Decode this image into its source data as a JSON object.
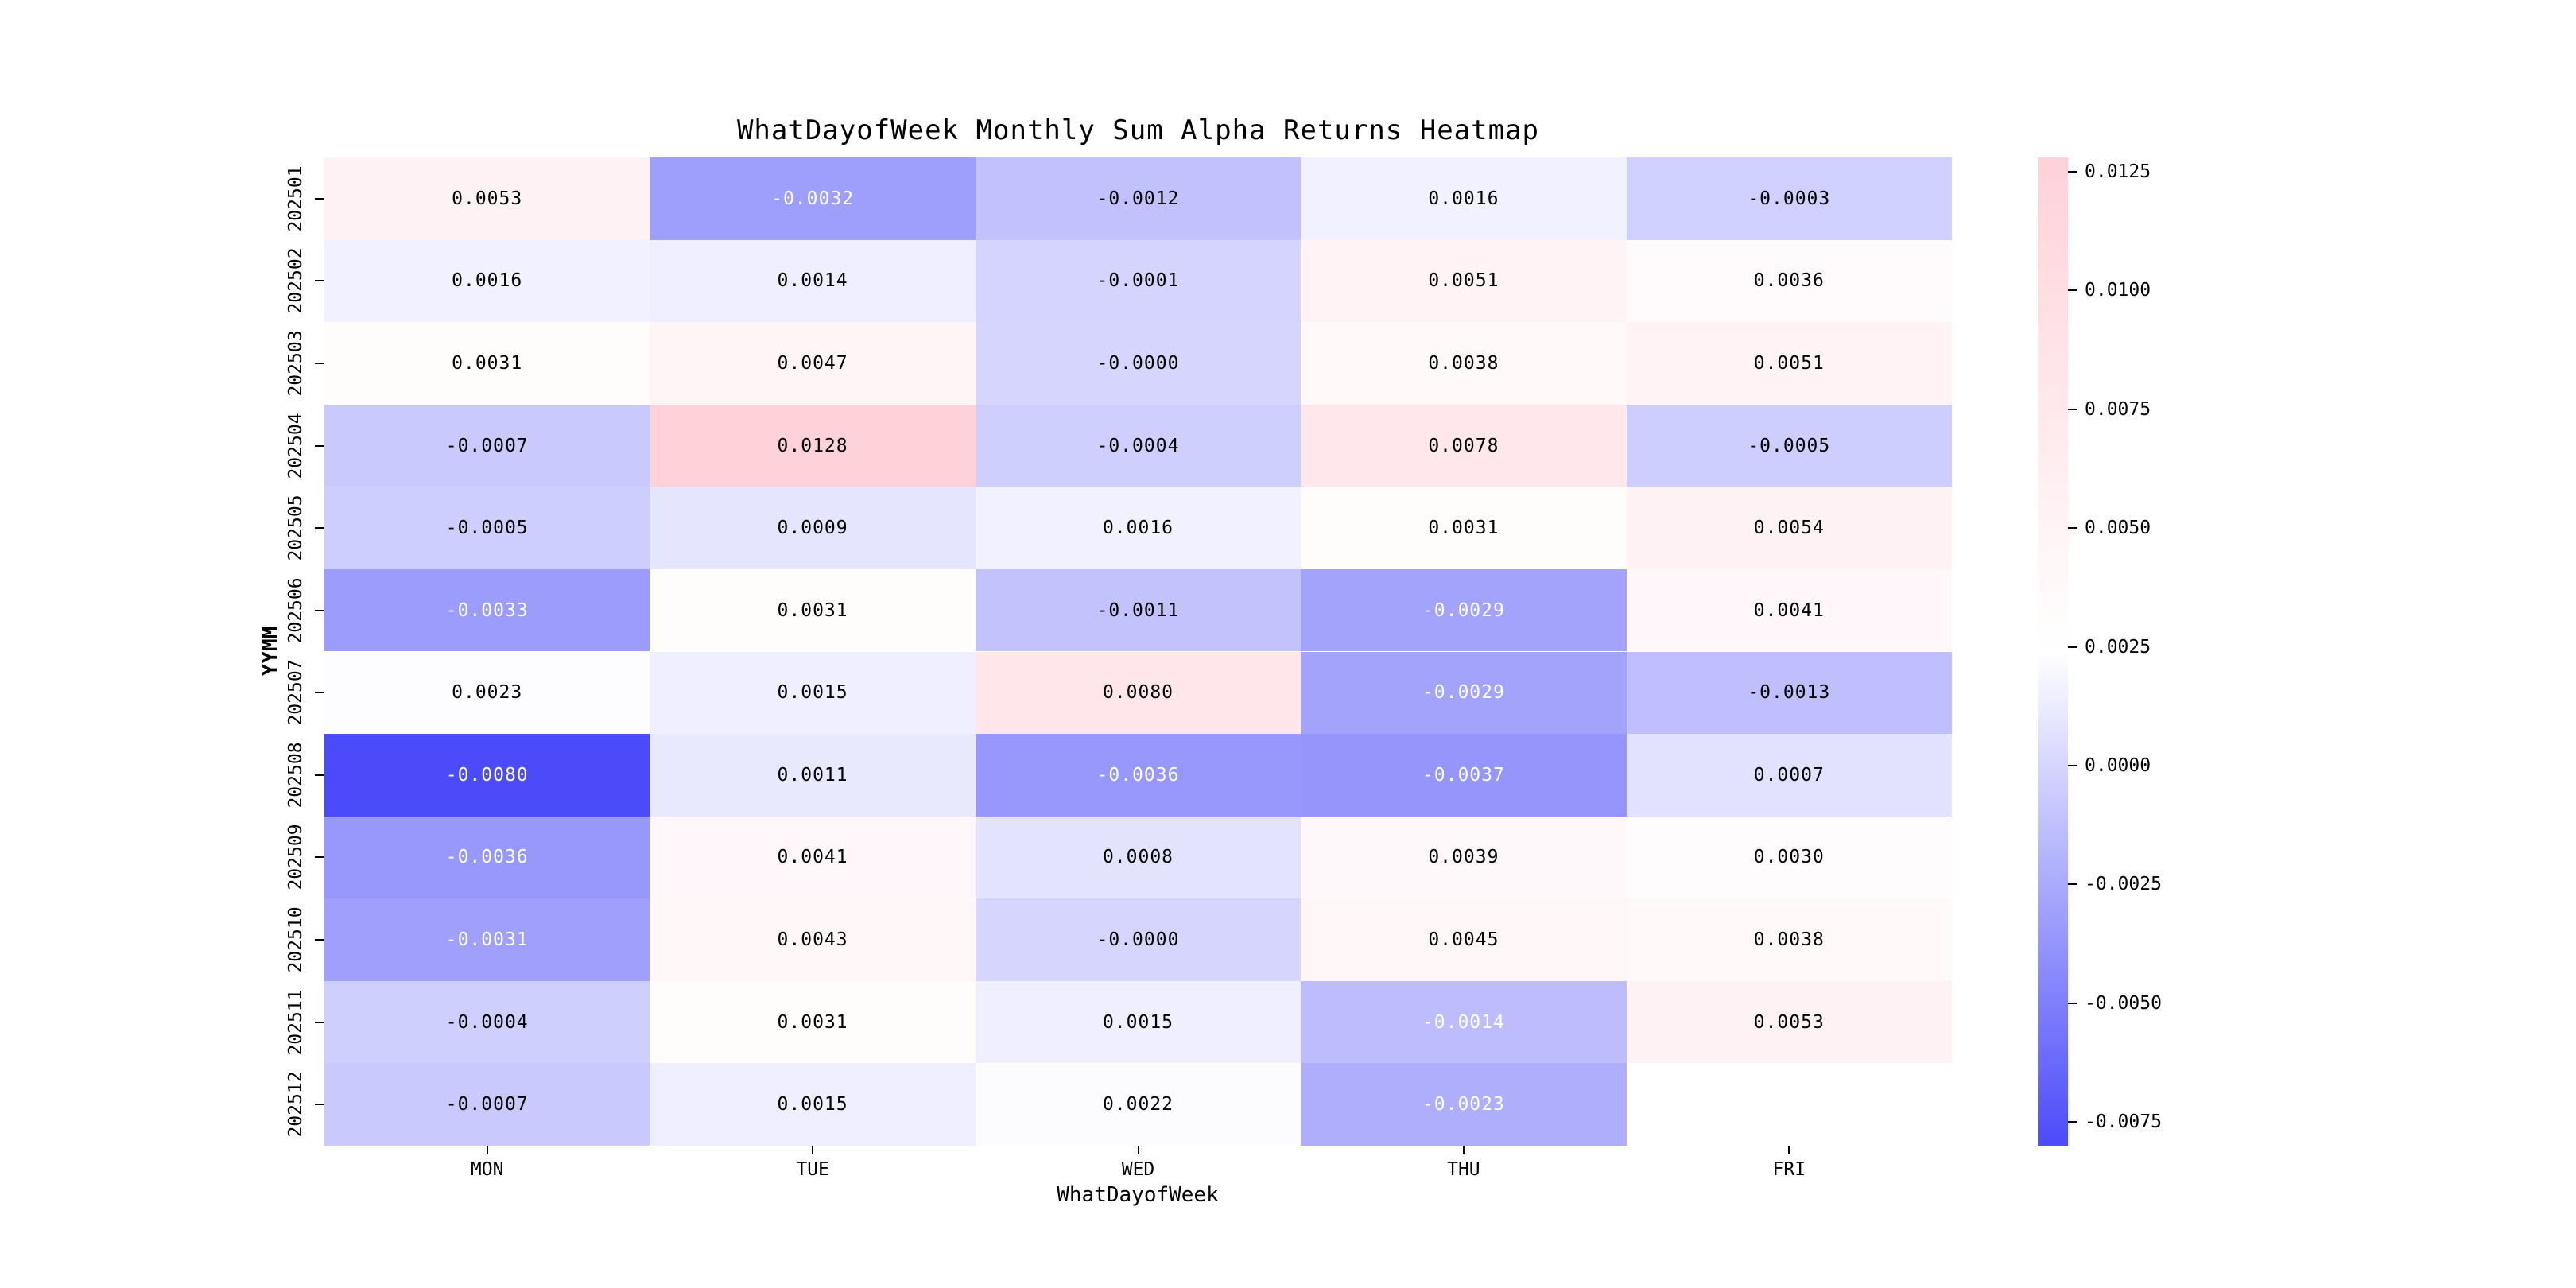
{
  "figure": {
    "background": "#ffffff"
  },
  "chart_data": {
    "type": "heatmap",
    "title": "WhatDayofWeek Monthly Sum Alpha Returns Heatmap",
    "xlabel": "WhatDayofWeek",
    "ylabel": "YYMM",
    "x_categories": [
      "MON",
      "TUE",
      "WED",
      "THU",
      "FRI"
    ],
    "y_categories": [
      "202501",
      "202502",
      "202503",
      "202504",
      "202505",
      "202506",
      "202507",
      "202508",
      "202509",
      "202510",
      "202511",
      "202512"
    ],
    "values": [
      [
        0.0053,
        -0.0032,
        -0.0012,
        0.0016,
        -0.0003
      ],
      [
        0.0016,
        0.0014,
        -0.0001,
        0.0051,
        0.0036
      ],
      [
        0.0031,
        0.0047,
        -0.0,
        0.0038,
        0.0051
      ],
      [
        -0.0007,
        0.0128,
        -0.0004,
        0.0078,
        -0.0005
      ],
      [
        -0.0005,
        0.0009,
        0.0016,
        0.0031,
        0.0054
      ],
      [
        -0.0033,
        0.0031,
        -0.0011,
        -0.0029,
        0.0041
      ],
      [
        0.0023,
        0.0015,
        0.008,
        -0.0029,
        -0.0013
      ],
      [
        -0.008,
        0.0011,
        -0.0036,
        -0.0037,
        0.0007
      ],
      [
        -0.0036,
        0.0041,
        0.0008,
        0.0039,
        0.003
      ],
      [
        -0.0031,
        0.0043,
        -0.0,
        0.0045,
        0.0038
      ],
      [
        -0.0004,
        0.0031,
        0.0015,
        -0.0014,
        0.0053
      ],
      [
        -0.0007,
        0.0015,
        0.0022,
        -0.0023,
        null
      ]
    ],
    "cell_labels": [
      [
        "0.0053",
        "-0.0032",
        "-0.0012",
        "0.0016",
        "-0.0003"
      ],
      [
        "0.0016",
        "0.0014",
        "-0.0001",
        "0.0051",
        "0.0036"
      ],
      [
        "0.0031",
        "0.0047",
        "-0.0000",
        "0.0038",
        "0.0051"
      ],
      [
        "-0.0007",
        "0.0128",
        "-0.0004",
        "0.0078",
        "-0.0005"
      ],
      [
        "-0.0005",
        "0.0009",
        "0.0016",
        "0.0031",
        "0.0054"
      ],
      [
        "-0.0033",
        "0.0031",
        "-0.0011",
        "-0.0029",
        "0.0041"
      ],
      [
        "0.0023",
        "0.0015",
        "0.0080",
        "-0.0029",
        "-0.0013"
      ],
      [
        "-0.0080",
        "0.0011",
        "-0.0036",
        "-0.0037",
        "0.0007"
      ],
      [
        "-0.0036",
        "0.0041",
        "0.0008",
        "0.0039",
        "0.0030"
      ],
      [
        "-0.0031",
        "0.0043",
        "-0.0000",
        "0.0045",
        "0.0038"
      ],
      [
        "-0.0004",
        "0.0031",
        "0.0015",
        "-0.0014",
        "0.0053"
      ],
      [
        "-0.0007",
        "0.0015",
        "0.0022",
        "-0.0023",
        null
      ]
    ],
    "missing_cells": [
      {
        "row": "202512",
        "col": "FRI"
      }
    ],
    "color_scale": {
      "vmin": -0.008,
      "vmid": 0.0024,
      "vmax": 0.0128,
      "min_color": "#4b4bfa",
      "mid_color": "#ffffff",
      "max_color": "#ffd1d9",
      "white_text_below": -0.00135,
      "missing_color": "#ffffff"
    },
    "colorbar": {
      "position": "right",
      "tick_values": [
        0.0125,
        0.01,
        0.0075,
        0.005,
        0.0025,
        0.0,
        -0.0025,
        -0.005,
        -0.0075
      ],
      "tick_labels": [
        "0.0125",
        "0.0100",
        "0.0075",
        "0.0050",
        "0.0025",
        "0.0000",
        "-0.0025",
        "-0.0050",
        "-0.0075"
      ]
    },
    "grid": false,
    "annotations_shown": true
  }
}
